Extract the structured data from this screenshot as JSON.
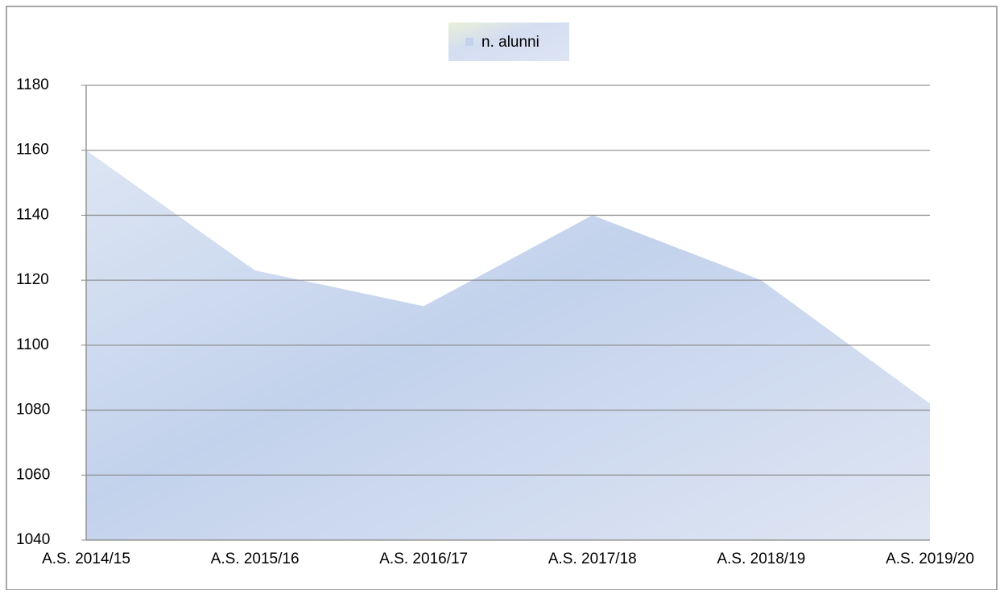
{
  "chart_data": {
    "type": "area",
    "categories": [
      "A.S. 2014/15",
      "A.S. 2015/16",
      "A.S. 2016/17",
      "A.S. 2017/18",
      "A.S. 2018/19",
      "A.S. 2019/20"
    ],
    "series": [
      {
        "name": "n. alunni",
        "color": "#c3d2ec",
        "values": [
          1160,
          1123,
          1112,
          1140,
          1120,
          1082
        ]
      }
    ],
    "ylim": [
      1040,
      1180
    ],
    "yticks": [
      1040,
      1060,
      1080,
      1100,
      1120,
      1140,
      1160,
      1180
    ],
    "grid": true,
    "legend": "top"
  }
}
